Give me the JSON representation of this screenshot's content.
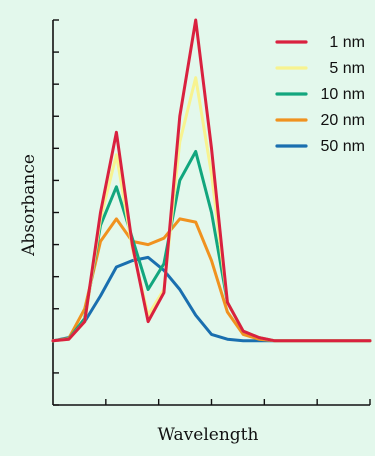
{
  "chart_data": {
    "type": "line",
    "title": "",
    "xlabel": "Wavelength",
    "ylabel": "Absorbance",
    "background": "#e3f8ec",
    "axis_color": "#111111",
    "grid": false,
    "legend_position": "top-right",
    "xlim": [
      0,
      100
    ],
    "ylim": [
      -0.2,
      1.0
    ],
    "x": [
      0,
      5,
      10,
      15,
      20,
      25,
      30,
      35,
      40,
      45,
      50,
      55,
      60,
      65,
      70,
      75,
      80,
      85,
      90,
      95,
      100
    ],
    "series": [
      {
        "name": "1 nm",
        "color": "#d9213f",
        "values": [
          0.0,
          0.005,
          0.06,
          0.4,
          0.65,
          0.3,
          0.06,
          0.15,
          0.7,
          1.0,
          0.6,
          0.12,
          0.03,
          0.01,
          0.0,
          0.0,
          0.0,
          0.0,
          0.0,
          0.0,
          0.0
        ]
      },
      {
        "name": "5 nm",
        "color": "#f7f390",
        "values": [
          0.0,
          0.005,
          0.06,
          0.38,
          0.58,
          0.29,
          0.08,
          0.16,
          0.62,
          0.82,
          0.52,
          0.12,
          0.03,
          0.01,
          0.0,
          0.0,
          0.0,
          0.0,
          0.0,
          0.0,
          0.0
        ]
      },
      {
        "name": "10 nm",
        "color": "#12a67e",
        "values": [
          0.0,
          0.006,
          0.07,
          0.36,
          0.48,
          0.32,
          0.16,
          0.24,
          0.5,
          0.59,
          0.4,
          0.12,
          0.03,
          0.01,
          0.0,
          0.0,
          0.0,
          0.0,
          0.0,
          0.0,
          0.0
        ]
      },
      {
        "name": "20 nm",
        "color": "#f0921f",
        "values": [
          0.0,
          0.008,
          0.1,
          0.31,
          0.38,
          0.31,
          0.3,
          0.32,
          0.38,
          0.37,
          0.25,
          0.09,
          0.02,
          0.005,
          0.0,
          0.0,
          0.0,
          0.0,
          0.0,
          0.0,
          0.0
        ]
      },
      {
        "name": "50 nm",
        "color": "#1a6faf",
        "values": [
          0.0,
          0.01,
          0.06,
          0.14,
          0.23,
          0.25,
          0.26,
          0.22,
          0.16,
          0.08,
          0.02,
          0.005,
          0.0,
          0.0,
          0.0,
          0.0,
          0.0,
          0.0,
          0.0,
          0.0,
          0.0
        ]
      }
    ]
  }
}
